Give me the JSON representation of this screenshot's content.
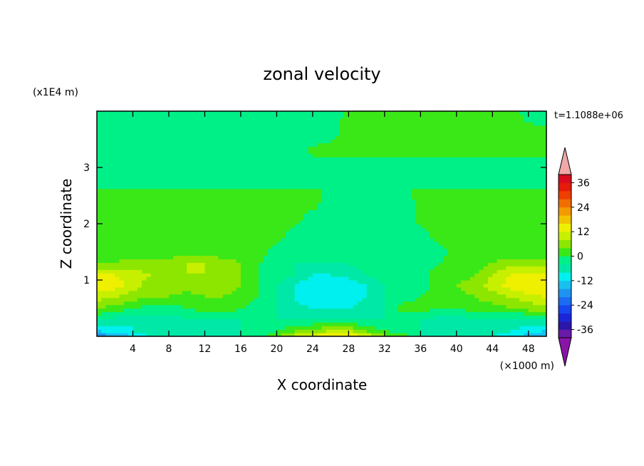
{
  "chart_data": {
    "type": "heatmap",
    "title": "zonal velocity",
    "xlabel": "X coordinate",
    "ylabel": "Z coordinate",
    "x_unit": "(×1000 m)",
    "y_unit": "(x1E4 m)",
    "time_label": "t=1.1088e+06",
    "xlim": [
      0,
      50
    ],
    "ylim": [
      0,
      4
    ],
    "x_ticks": [
      4,
      8,
      12,
      16,
      20,
      24,
      28,
      32,
      36,
      40,
      44,
      48
    ],
    "y_ticks": [
      1,
      2,
      3
    ],
    "colorbar": {
      "levels": [
        -40,
        -36,
        -32,
        -28,
        -24,
        -20,
        -16,
        -12,
        -8,
        -4,
        0,
        4,
        8,
        12,
        16,
        20,
        24,
        28,
        32,
        36,
        40
      ],
      "colors": [
        "#6a1aa8",
        "#2a16a8",
        "#1a26d8",
        "#1546ee",
        "#1a6cf2",
        "#1e94f2",
        "#18c0f0",
        "#00f0f0",
        "#00e8a8",
        "#00f088",
        "#3ae818",
        "#8ce600",
        "#c6f000",
        "#eef000",
        "#f2c400",
        "#f29a00",
        "#f06e00",
        "#ee3e00",
        "#e41a0a",
        "#d80c1e"
      ],
      "under_color": "#8a14a8",
      "over_color": "#f0a8a8",
      "tick_labels": [
        "36",
        "24",
        "12",
        "0",
        "-12",
        "-24",
        "-36"
      ],
      "tick_values": [
        36,
        24,
        12,
        0,
        -12,
        -24,
        -36
      ]
    },
    "field": {
      "x_axis_values": [
        0,
        2,
        4,
        6,
        8,
        10,
        12,
        14,
        16,
        18,
        20,
        22,
        24,
        26,
        28,
        30,
        32,
        34,
        36,
        38,
        40,
        42,
        44,
        46,
        48,
        50
      ],
      "z_axis_values": [
        0,
        0.1,
        0.3,
        0.5,
        0.7,
        0.9,
        1.1,
        1.3,
        1.5,
        1.8,
        2.1,
        2.4,
        2.6,
        2.7,
        2.9,
        3.1,
        3.3,
        3.6,
        4.0
      ],
      "values": [
        [
          -20,
          -16,
          -12,
          -8,
          -8,
          -8,
          -6,
          -6,
          -4,
          -2,
          4,
          10,
          14,
          16,
          16,
          12,
          6,
          2,
          -4,
          -6,
          -8,
          -8,
          -8,
          -10,
          -14,
          -18
        ],
        [
          -12,
          -10,
          -8,
          -6,
          -6,
          -6,
          -6,
          -5,
          -4,
          -2,
          0,
          4,
          6,
          8,
          8,
          4,
          0,
          -2,
          -4,
          -6,
          -6,
          -6,
          -6,
          -8,
          -10,
          -12
        ],
        [
          -4,
          -6,
          -8,
          -6,
          -5,
          -5,
          -5,
          -4,
          -4,
          -4,
          -4,
          -4,
          -4,
          -4,
          -4,
          -4,
          -4,
          -4,
          -4,
          -6,
          -6,
          -5,
          -5,
          -6,
          -6,
          -4
        ],
        [
          4,
          2,
          0,
          -2,
          -2,
          0,
          2,
          2,
          0,
          -2,
          -4,
          -6,
          -8,
          -8,
          -8,
          -6,
          -4,
          2,
          2,
          0,
          0,
          2,
          2,
          4,
          6,
          6
        ],
        [
          10,
          8,
          6,
          4,
          4,
          2,
          4,
          4,
          2,
          0,
          -4,
          -8,
          -12,
          -12,
          -10,
          -8,
          -4,
          -2,
          0,
          2,
          2,
          4,
          6,
          8,
          10,
          12
        ],
        [
          14,
          14,
          10,
          6,
          6,
          6,
          6,
          6,
          4,
          0,
          -4,
          -8,
          -12,
          -12,
          -12,
          -8,
          -4,
          -4,
          -2,
          2,
          4,
          6,
          10,
          14,
          16,
          16
        ],
        [
          12,
          12,
          10,
          8,
          6,
          8,
          8,
          6,
          4,
          0,
          -2,
          -4,
          -8,
          -8,
          -6,
          -4,
          -2,
          -2,
          -2,
          2,
          2,
          4,
          8,
          12,
          14,
          14
        ],
        [
          4,
          4,
          6,
          6,
          6,
          8,
          8,
          6,
          4,
          0,
          -2,
          -4,
          -4,
          -4,
          -4,
          -2,
          -2,
          -2,
          -2,
          0,
          2,
          2,
          4,
          6,
          6,
          6
        ],
        [
          2,
          2,
          2,
          2,
          2,
          2,
          2,
          2,
          2,
          2,
          -2,
          -4,
          -4,
          -4,
          -4,
          -4,
          -4,
          -4,
          -2,
          -2,
          2,
          2,
          2,
          2,
          2,
          2
        ],
        [
          2,
          2,
          2,
          2,
          2,
          2,
          2,
          2,
          2,
          2,
          2,
          -2,
          -4,
          -4,
          -4,
          -4,
          -4,
          -4,
          -2,
          2,
          2,
          2,
          2,
          2,
          2,
          2
        ],
        [
          2,
          2,
          2,
          2,
          2,
          2,
          2,
          2,
          2,
          2,
          2,
          2,
          -2,
          -4,
          -4,
          -4,
          -4,
          -4,
          2,
          2,
          2,
          2,
          2,
          2,
          2,
          2
        ],
        [
          2,
          2,
          2,
          2,
          2,
          2,
          2,
          2,
          2,
          2,
          2,
          2,
          2,
          -2,
          -4,
          -4,
          -4,
          -4,
          2,
          2,
          2,
          2,
          2,
          2,
          2,
          2
        ],
        [
          2,
          2,
          2,
          2,
          2,
          2,
          2,
          2,
          2,
          2,
          2,
          2,
          2,
          -2,
          -4,
          -4,
          -4,
          -2,
          2,
          2,
          2,
          2,
          2,
          2,
          2,
          2
        ],
        [
          -4,
          -4,
          -2,
          -2,
          -2,
          -2,
          -2,
          -2,
          -2,
          -4,
          -4,
          -4,
          -4,
          -4,
          -4,
          -4,
          -4,
          -4,
          -4,
          -4,
          -4,
          -4,
          -4,
          -4,
          -2,
          -2
        ],
        [
          -2,
          -2,
          -4,
          -4,
          -4,
          -4,
          -4,
          -4,
          -4,
          -4,
          -4,
          -4,
          -4,
          -4,
          -4,
          -4,
          -4,
          -4,
          -4,
          -4,
          -4,
          -4,
          -4,
          -4,
          -4,
          -2
        ],
        [
          -2,
          -2,
          -2,
          -4,
          -4,
          -4,
          -4,
          -4,
          -4,
          -4,
          -4,
          -4,
          -2,
          -2,
          -2,
          -2,
          -2,
          -2,
          -2,
          -2,
          -2,
          -2,
          -2,
          -2,
          -2,
          -2
        ],
        [
          -4,
          -4,
          -4,
          -4,
          -4,
          -4,
          -4,
          -4,
          -4,
          -4,
          -4,
          -4,
          2,
          2,
          2,
          2,
          2,
          2,
          2,
          2,
          2,
          2,
          2,
          2,
          2,
          2
        ],
        [
          -4,
          -4,
          -4,
          -4,
          -4,
          -4,
          -4,
          -4,
          -4,
          -4,
          -4,
          -4,
          -4,
          -2,
          2,
          2,
          2,
          2,
          2,
          2,
          2,
          2,
          2,
          2,
          2,
          2
        ],
        [
          -4,
          -4,
          -4,
          -4,
          -4,
          -4,
          -4,
          -4,
          -4,
          -4,
          -4,
          -4,
          -4,
          -4,
          2,
          2,
          2,
          2,
          2,
          2,
          2,
          2,
          2,
          2,
          -2,
          -4
        ]
      ]
    }
  }
}
